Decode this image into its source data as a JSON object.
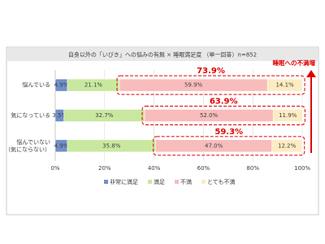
{
  "chart_data": {
    "type": "stacked_bar_horizontal",
    "title": "自身以外の「いびき」への悩みの有無 × 睡眠満足度 （単一回答）n=852",
    "categories": [
      "悩んでいる",
      "気になっている",
      "悩んでいない\n（気にならない）"
    ],
    "series": [
      {
        "name": "非常に満足",
        "color": "#6f8fc9",
        "values": [
          4.9,
          3.5,
          4.9
        ],
        "value_labels": [
          "4.9%",
          "3.5%",
          "4.9%"
        ]
      },
      {
        "name": "満足",
        "color": "#c9e89f",
        "values": [
          21.1,
          32.7,
          35.8
        ],
        "value_labels": [
          "21.1%",
          "32.7%",
          "35.8%"
        ]
      },
      {
        "name": "不満",
        "color": "#f8bcbc",
        "values": [
          59.9,
          52.0,
          47.0
        ],
        "value_labels": [
          "59.9%",
          "52.0%",
          "47.0%"
        ]
      },
      {
        "name": "とても不満",
        "color": "#fdebc2",
        "values": [
          14.1,
          11.9,
          12.2
        ],
        "value_labels": [
          "14.1%",
          "11.9%",
          "12.2%"
        ]
      }
    ],
    "dissatisfied_totals": [
      {
        "value": 73.9,
        "label": "73.9%"
      },
      {
        "value": 63.9,
        "label": "63.9%"
      },
      {
        "value": 59.3,
        "label": "59.3%"
      }
    ],
    "arrow_label": "睡眠への不満増",
    "xlim": [
      0,
      100
    ],
    "xticks": [
      {
        "value": 0,
        "label": "0%"
      },
      {
        "value": 20,
        "label": "20%"
      },
      {
        "value": 40,
        "label": "40%"
      },
      {
        "value": 60,
        "label": "60%"
      },
      {
        "value": 80,
        "label": "80%"
      },
      {
        "value": 100,
        "label": "100%"
      }
    ],
    "grid": true,
    "legend": "bottom",
    "highlight_color": "#e00000"
  }
}
